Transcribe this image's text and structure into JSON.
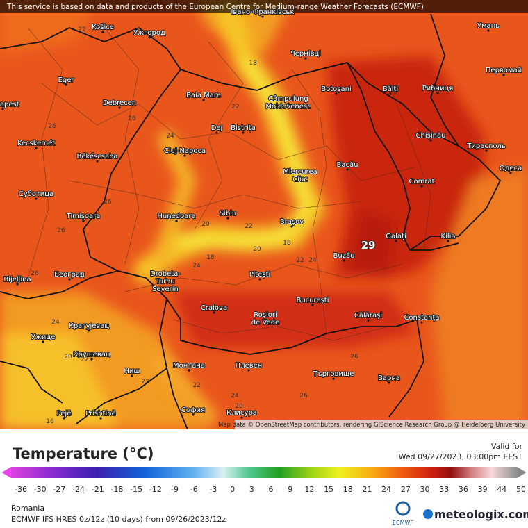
{
  "banner": "This service is based on data and products of the European Centre for Medium-range Weather Forecasts (ECMWF)",
  "attribution": "Map data © OpenStreetMap contributors, rendering GIScience Research Group @ Heidelberg University",
  "map": {
    "cities": [
      "Košice",
      "Ужгород",
      "Івано-Франківськ",
      "Чернівці",
      "Умань",
      "Eger",
      "Baia Mare",
      [
        "Câmpulung",
        "Moldovenesc"
      ],
      "Botoșani",
      "Bălți",
      "Рибниця",
      "Первомай",
      "Budapest",
      "Debrecen",
      "Dej",
      "Bistrița",
      "Chișinău",
      "Тирасполь",
      "Kecskemét",
      "Cluj-Napoca",
      "Békéscsaba",
      [
        "Miercurea",
        "Ciuc"
      ],
      "Bacău",
      "Одеса",
      "Суботица",
      "Comrat",
      "Timișoara",
      "Hunedoara",
      "Sibiu",
      "Brașov",
      "Galați",
      "Kilia",
      "Bijeljina",
      "Београд",
      [
        "Drobeta-",
        "Turnu",
        "Severin"
      ],
      "Buzău",
      "Pitești",
      "București",
      "Craiova",
      [
        "Roșiori",
        "de Vede"
      ],
      "Călărași",
      "Constanța",
      "Крагујевац",
      "Ужице",
      "Крушевац",
      "Ниш",
      "Монтана",
      "Плевен",
      "Търговище",
      "Варна",
      "Pejë",
      "Prishtinë",
      "София",
      "Клисура"
    ],
    "temperature_labels": [
      22,
      18,
      22,
      26,
      26,
      24,
      26,
      26,
      20,
      22,
      18,
      20,
      22,
      24,
      29,
      18,
      24,
      26,
      24,
      20,
      22,
      22,
      22,
      26,
      26,
      24,
      20,
      16
    ]
  },
  "legend": {
    "title": "Temperature (°C)",
    "labels": [
      -36,
      -30,
      -27,
      -24,
      -21,
      -18,
      -15,
      -12,
      -9,
      -6,
      -3,
      0,
      3,
      6,
      9,
      12,
      15,
      18,
      21,
      24,
      27,
      30,
      33,
      36,
      39,
      44,
      50
    ]
  },
  "valid": {
    "label": "Valid for",
    "datetime": "Wed 09/27/2023, 03:00pm EEST"
  },
  "region": "Romania",
  "model": "ECMWF IFS HRES 0z/12z (10 days) from 09/26/2023/12z",
  "logos": {
    "ecmwf": "ECMWF",
    "meteologix": "meteologix.com"
  }
}
